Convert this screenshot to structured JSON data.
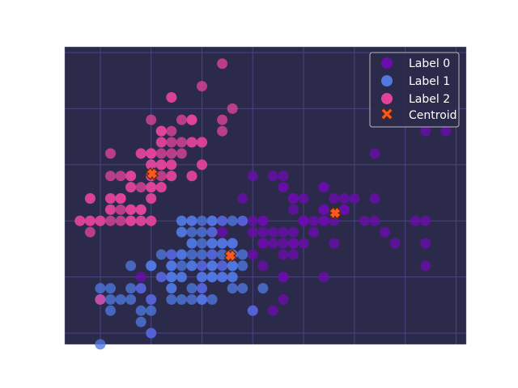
{
  "chart_data": {
    "type": "scatter",
    "title": "",
    "xlabel": "",
    "ylabel": "",
    "xlim": [
      4.15,
      8.1
    ],
    "ylim": [
      1.9,
      4.55
    ],
    "grid": true,
    "legend_position": "top-right",
    "colors": {
      "figure_bg": "#ffffff",
      "axes_bg": "#2b2a4a",
      "grid": "#4a4585",
      "border": "#888888",
      "label_0": "#6a0dad",
      "label_1": "#5078e0",
      "label_2": "#e0449a",
      "centroid_fill": "#ff5722",
      "centroid_edge": "#5a2a00"
    },
    "series": [
      {
        "name": "Label 0",
        "points": [
          [
            7.0,
            3.2
          ],
          [
            6.4,
            3.2
          ],
          [
            6.9,
            3.1
          ],
          [
            5.5,
            2.3
          ],
          [
            6.5,
            2.8
          ],
          [
            5.7,
            2.8
          ],
          [
            6.3,
            3.3
          ],
          [
            4.9,
            2.4
          ],
          [
            6.6,
            2.9
          ],
          [
            5.2,
            2.7
          ],
          [
            5.0,
            2.0
          ],
          [
            5.9,
            3.0
          ],
          [
            6.0,
            2.2
          ],
          [
            6.1,
            2.9
          ],
          [
            5.6,
            2.9
          ],
          [
            6.7,
            3.1
          ],
          [
            5.6,
            3.0
          ],
          [
            5.8,
            2.7
          ],
          [
            6.2,
            2.2
          ],
          [
            5.6,
            2.5
          ],
          [
            5.9,
            3.2
          ],
          [
            6.1,
            2.8
          ],
          [
            6.3,
            2.5
          ],
          [
            6.1,
            2.8
          ],
          [
            6.4,
            2.9
          ],
          [
            6.6,
            3.0
          ],
          [
            6.8,
            2.8
          ],
          [
            6.7,
            3.0
          ],
          [
            6.0,
            2.9
          ],
          [
            5.7,
            2.6
          ],
          [
            5.5,
            2.4
          ],
          [
            5.5,
            2.4
          ],
          [
            5.8,
            2.7
          ],
          [
            6.0,
            2.7
          ],
          [
            5.4,
            3.0
          ],
          [
            6.0,
            3.4
          ],
          [
            6.7,
            3.1
          ],
          [
            6.3,
            2.3
          ],
          [
            5.6,
            3.0
          ],
          [
            5.5,
            2.5
          ],
          [
            5.5,
            2.6
          ],
          [
            6.1,
            3.0
          ],
          [
            5.8,
            2.6
          ],
          [
            5.0,
            2.3
          ],
          [
            5.6,
            2.7
          ],
          [
            5.7,
            3.0
          ],
          [
            5.7,
            2.9
          ],
          [
            6.2,
            2.9
          ],
          [
            5.1,
            2.5
          ],
          [
            5.7,
            2.8
          ],
          [
            6.3,
            3.3
          ],
          [
            5.8,
            2.7
          ],
          [
            7.1,
            3.0
          ],
          [
            6.3,
            2.9
          ],
          [
            6.5,
            3.0
          ],
          [
            7.6,
            3.0
          ],
          [
            4.9,
            2.5
          ],
          [
            7.3,
            2.9
          ],
          [
            6.7,
            2.5
          ],
          [
            7.2,
            3.6
          ],
          [
            6.5,
            3.2
          ],
          [
            6.4,
            2.7
          ],
          [
            6.8,
            3.0
          ],
          [
            5.7,
            2.5
          ],
          [
            5.8,
            2.8
          ],
          [
            6.4,
            3.2
          ],
          [
            6.5,
            3.0
          ],
          [
            7.7,
            3.8
          ],
          [
            7.7,
            2.6
          ],
          [
            6.0,
            2.2
          ],
          [
            6.9,
            3.2
          ],
          [
            5.6,
            2.8
          ],
          [
            7.7,
            2.8
          ],
          [
            6.3,
            2.7
          ],
          [
            6.7,
            3.3
          ],
          [
            7.2,
            3.2
          ],
          [
            6.2,
            2.8
          ],
          [
            6.1,
            3.0
          ],
          [
            6.4,
            2.8
          ],
          [
            7.2,
            3.0
          ],
          [
            7.4,
            2.8
          ],
          [
            7.9,
            3.8
          ],
          [
            6.4,
            2.8
          ],
          [
            6.3,
            2.8
          ],
          [
            6.1,
            2.6
          ],
          [
            7.7,
            3.0
          ],
          [
            6.3,
            3.4
          ],
          [
            6.4,
            3.1
          ],
          [
            6.0,
            3.0
          ],
          [
            6.9,
            3.1
          ],
          [
            6.7,
            3.1
          ],
          [
            6.9,
            3.1
          ],
          [
            5.8,
            2.7
          ],
          [
            6.8,
            3.2
          ],
          [
            6.7,
            3.3
          ],
          [
            6.7,
            3.0
          ],
          [
            6.3,
            2.5
          ],
          [
            6.5,
            3.0
          ],
          [
            6.2,
            3.4
          ],
          [
            5.9,
            3.0
          ]
        ]
      },
      {
        "name": "Label 1",
        "points": [
          [
            5.0,
            3.5
          ],
          [
            5.6,
            3.0
          ],
          [
            5.1,
            2.5
          ],
          [
            6.0,
            2.2
          ],
          [
            5.3,
            2.6
          ],
          [
            5.5,
            2.3
          ],
          [
            5.2,
            2.5
          ],
          [
            5.8,
            2.4
          ],
          [
            5.6,
            2.5
          ],
          [
            5.0,
            2.6
          ],
          [
            5.7,
            2.8
          ],
          [
            5.4,
            2.4
          ],
          [
            5.2,
            2.7
          ],
          [
            5.3,
            2.9
          ],
          [
            5.0,
            2.0
          ],
          [
            4.6,
            2.3
          ],
          [
            5.4,
            3.0
          ],
          [
            5.5,
            2.6
          ],
          [
            5.3,
            2.5
          ],
          [
            5.4,
            2.9
          ],
          [
            4.9,
            2.2
          ],
          [
            5.7,
            2.7
          ],
          [
            4.5,
            2.3
          ],
          [
            5.6,
            2.3
          ],
          [
            5.8,
            2.5
          ],
          [
            5.4,
            2.7
          ],
          [
            6.1,
            2.4
          ],
          [
            5.2,
            2.4
          ],
          [
            5.3,
            3.0
          ],
          [
            4.6,
            2.2
          ],
          [
            5.6,
            2.7
          ],
          [
            4.9,
            2.1
          ],
          [
            5.5,
            2.7
          ],
          [
            5.7,
            2.8
          ],
          [
            5.6,
            2.8
          ],
          [
            5.3,
            2.7
          ],
          [
            5.4,
            2.8
          ],
          [
            5.8,
            2.8
          ],
          [
            5.5,
            2.9
          ],
          [
            5.5,
            3.0
          ],
          [
            4.8,
            2.6
          ],
          [
            5.7,
            2.6
          ],
          [
            5.8,
            3.0
          ],
          [
            5.4,
            2.8
          ],
          [
            5.6,
            2.5
          ],
          [
            5.2,
            2.4
          ],
          [
            4.5,
            2.4
          ],
          [
            5.9,
            2.7
          ],
          [
            5.2,
            2.6
          ],
          [
            4.6,
            2.4
          ],
          [
            5.8,
            2.6
          ],
          [
            5.0,
            2.2
          ],
          [
            4.5,
            1.9
          ],
          [
            5.9,
            2.4
          ],
          [
            5.5,
            2.4
          ],
          [
            5.2,
            2.6
          ],
          [
            5.3,
            3.0
          ],
          [
            5.6,
            2.8
          ],
          [
            5.8,
            2.6
          ],
          [
            4.8,
            2.3
          ],
          [
            5.2,
            2.5
          ],
          [
            5.4,
            2.6
          ],
          [
            5.5,
            2.5
          ],
          [
            5.4,
            3.0
          ],
          [
            5.6,
            2.6
          ],
          [
            5.2,
            2.6
          ],
          [
            5.7,
            2.5
          ],
          [
            4.5,
            2.3
          ],
          [
            5.5,
            2.8
          ],
          [
            5.8,
            2.5
          ],
          [
            5.0,
            2.3
          ],
          [
            4.8,
            2.4
          ],
          [
            5.9,
            2.6
          ],
          [
            5.6,
            3.0
          ],
          [
            5.4,
            2.6
          ],
          [
            5.3,
            2.7
          ],
          [
            5.5,
            2.3
          ],
          [
            5.2,
            2.3
          ],
          [
            5.6,
            2.6
          ],
          [
            4.7,
            2.3
          ],
          [
            5.8,
            2.7
          ],
          [
            5.3,
            2.5
          ],
          [
            5.7,
            2.5
          ],
          [
            4.9,
            2.4
          ],
          [
            5.1,
            2.7
          ],
          [
            5.8,
            2.8
          ],
          [
            5.6,
            2.9
          ],
          [
            5.0,
            2.6
          ],
          [
            5.7,
            3.0
          ],
          [
            5.6,
            2.6
          ],
          [
            5.2,
            2.5
          ],
          [
            5.9,
            3.0
          ],
          [
            5.8,
            2.6
          ],
          [
            5.4,
            2.3
          ],
          [
            5.0,
            2.6
          ],
          [
            5.6,
            2.5
          ],
          [
            5.3,
            2.3
          ],
          [
            5.8,
            2.7
          ],
          [
            5.3,
            2.9
          ],
          [
            5.5,
            2.5
          ]
        ]
      },
      {
        "name": "Label 2",
        "points": [
          [
            5.1,
            3.5
          ],
          [
            4.9,
            3.0
          ],
          [
            4.7,
            3.2
          ],
          [
            4.6,
            3.1
          ],
          [
            5.0,
            3.6
          ],
          [
            5.4,
            3.9
          ],
          [
            4.6,
            3.4
          ],
          [
            5.0,
            3.4
          ],
          [
            4.4,
            2.9
          ],
          [
            4.9,
            3.1
          ],
          [
            5.4,
            3.7
          ],
          [
            4.8,
            3.4
          ],
          [
            4.8,
            3.0
          ],
          [
            4.3,
            3.0
          ],
          [
            5.8,
            4.0
          ],
          [
            5.7,
            4.4
          ],
          [
            5.4,
            3.9
          ],
          [
            5.1,
            3.5
          ],
          [
            5.7,
            3.8
          ],
          [
            5.1,
            3.8
          ],
          [
            5.4,
            3.4
          ],
          [
            5.1,
            3.7
          ],
          [
            4.6,
            3.6
          ],
          [
            5.1,
            3.3
          ],
          [
            4.8,
            3.4
          ],
          [
            5.0,
            3.0
          ],
          [
            5.0,
            3.4
          ],
          [
            5.2,
            3.5
          ],
          [
            5.2,
            3.4
          ],
          [
            4.7,
            3.2
          ],
          [
            4.8,
            3.1
          ],
          [
            5.4,
            3.4
          ],
          [
            5.2,
            4.1
          ],
          [
            5.5,
            4.2
          ],
          [
            4.9,
            3.1
          ],
          [
            5.0,
            3.2
          ],
          [
            5.5,
            3.5
          ],
          [
            4.9,
            3.6
          ],
          [
            4.4,
            3.0
          ],
          [
            5.1,
            3.4
          ],
          [
            5.0,
            3.5
          ],
          [
            4.5,
            2.3
          ],
          [
            4.4,
            3.2
          ],
          [
            5.0,
            3.5
          ],
          [
            5.1,
            3.8
          ],
          [
            4.8,
            3.0
          ],
          [
            5.1,
            3.8
          ],
          [
            4.6,
            3.2
          ],
          [
            5.3,
            3.7
          ],
          [
            5.0,
            3.3
          ],
          [
            4.7,
            3.0
          ],
          [
            4.8,
            3.1
          ],
          [
            4.9,
            3.0
          ],
          [
            5.2,
            3.6
          ],
          [
            4.8,
            3.3
          ],
          [
            5.0,
            3.0
          ],
          [
            5.2,
            3.4
          ],
          [
            4.6,
            3.1
          ],
          [
            5.0,
            3.6
          ],
          [
            4.9,
            3.3
          ],
          [
            4.7,
            3.4
          ],
          [
            5.5,
            3.7
          ],
          [
            5.3,
            3.9
          ],
          [
            5.2,
            3.5
          ],
          [
            4.4,
            3.0
          ],
          [
            5.0,
            3.2
          ],
          [
            4.8,
            3.4
          ],
          [
            4.9,
            3.1
          ],
          [
            5.1,
            3.7
          ],
          [
            5.0,
            3.3
          ],
          [
            5.7,
            3.9
          ],
          [
            4.7,
            3.1
          ],
          [
            5.1,
            3.3
          ],
          [
            4.4,
            3.2
          ],
          [
            5.5,
            3.7
          ],
          [
            4.6,
            3.0
          ],
          [
            4.9,
            3.6
          ],
          [
            5.0,
            3.9
          ],
          [
            5.2,
            3.8
          ],
          [
            5.4,
            3.7
          ],
          [
            4.8,
            3.0
          ],
          [
            4.5,
            3.0
          ],
          [
            5.1,
            3.6
          ],
          [
            4.6,
            3.2
          ],
          [
            5.2,
            3.7
          ],
          [
            4.9,
            3.1
          ],
          [
            5.4,
            3.9
          ],
          [
            4.5,
            3.0
          ],
          [
            5.0,
            3.3
          ],
          [
            4.3,
            3.0
          ],
          [
            5.5,
            3.5
          ],
          [
            4.8,
            3.1
          ],
          [
            5.0,
            3.6
          ],
          [
            5.1,
            3.8
          ],
          [
            4.8,
            3.3
          ],
          [
            5.1,
            3.5
          ],
          [
            5.0,
            3.4
          ],
          [
            5.2,
            4.1
          ],
          [
            4.7,
            3.2
          ],
          [
            5.3,
            3.6
          ]
        ]
      },
      {
        "name": "Centroid",
        "marker": "X",
        "points": [
          [
            6.81,
            3.07
          ],
          [
            5.78,
            2.69
          ],
          [
            5.01,
            3.42
          ]
        ]
      }
    ]
  }
}
